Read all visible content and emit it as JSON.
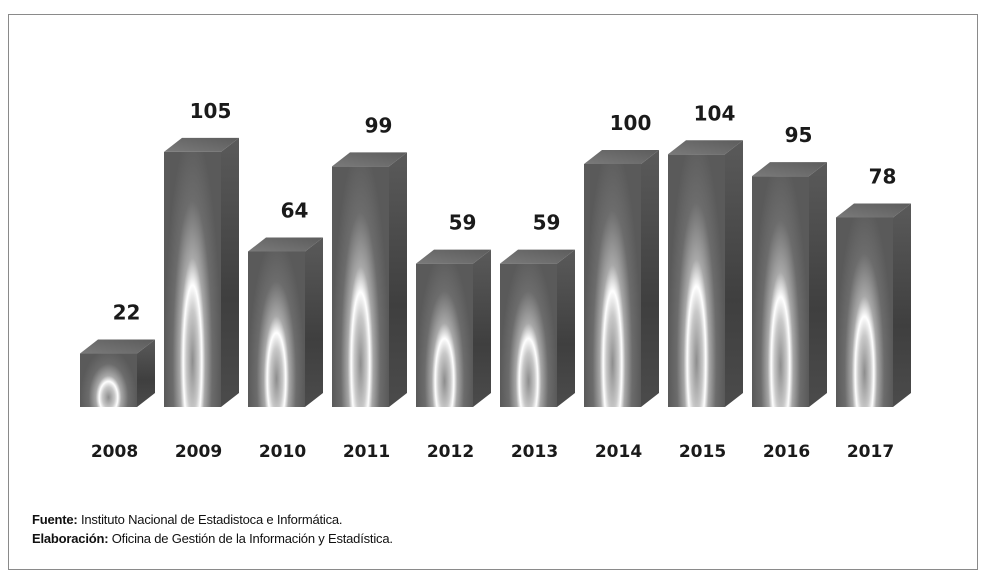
{
  "chart_data": {
    "type": "bar",
    "categories": [
      "2008",
      "2009",
      "2010",
      "2011",
      "2012",
      "2013",
      "2014",
      "2015",
      "2016",
      "2017"
    ],
    "values": [
      22,
      105,
      64,
      99,
      59,
      59,
      100,
      104,
      95,
      78
    ],
    "data_labels": [
      "22",
      "105",
      "64",
      "99",
      "59",
      "59",
      "100",
      "104",
      "95",
      "78"
    ],
    "style": "3d-column",
    "legend": "none",
    "grid": false
  },
  "notes": {
    "source_label": "Fuente:",
    "source_text": "Instituto Nacional de Estadistoca e Informática.",
    "credit_label": "Elaboración:",
    "credit_text": "Oficina de Gestión de la Información y Estadística."
  },
  "colors": {
    "bar_front_dark": "#5f5f5f",
    "bar_glow": "#ffffff",
    "bar_top": "#6e6e6e",
    "bar_side": "#4a4a4a",
    "text": "#1a1a1a",
    "frame_border": "#8a8a8a"
  }
}
